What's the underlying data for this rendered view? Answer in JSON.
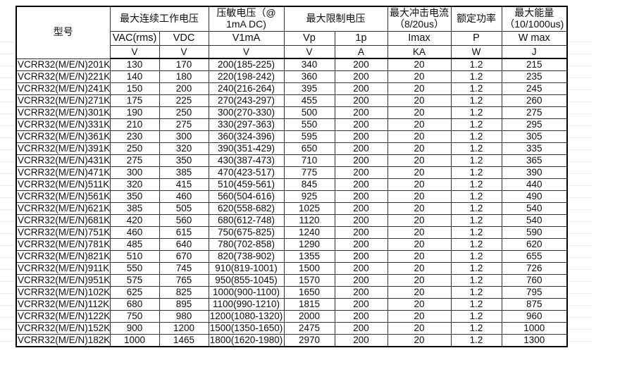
{
  "colors": {
    "background": "#ffffff",
    "border": "#333333",
    "text": "#0d0d0d"
  },
  "header": {
    "model": "型号",
    "group_mcov": "最大连续工作电压",
    "group_varistor_line1": "压敏电压（@",
    "group_varistor_line2": "1mA DC)",
    "group_clamping": "最大限制电压",
    "group_surge_line1": "最大冲击电流",
    "group_surge_line2": "（8/20us）",
    "group_power": "额定功率",
    "group_energy_line1": "最大能量",
    "group_energy_line2": "（10/1000us)",
    "sub": [
      "VAC(rms)",
      "VDC",
      "V1mA",
      "Vp",
      "1p",
      "Imax",
      "P",
      "W max"
    ],
    "units": [
      "V",
      "V",
      "V",
      "V",
      "A",
      "KA",
      "W",
      "J"
    ]
  },
  "rows": [
    [
      "VCRR32(M/E/N)201K",
      "130",
      "170",
      "200(185-225)",
      "340",
      "200",
      "20",
      "1.2",
      "215"
    ],
    [
      "VCRR32(M/E/N)221K",
      "140",
      "180",
      "220(198-242)",
      "360",
      "200",
      "20",
      "1.2",
      "235"
    ],
    [
      "VCRR32(M/E/N)241K",
      "150",
      "200",
      "240(216-264)",
      "395",
      "200",
      "20",
      "1.2",
      "245"
    ],
    [
      "VCRR32(M/E/N)271K",
      "175",
      "225",
      "270(243-297)",
      "455",
      "200",
      "20",
      "1.2",
      "260"
    ],
    [
      "VCRR32(M/E/N)301K",
      "190",
      "250",
      "300(270-330)",
      "500",
      "200",
      "20",
      "1.2",
      "275"
    ],
    [
      "VCRR32(M/E/N)331K",
      "210",
      "275",
      "330(297-363)",
      "550",
      "200",
      "20",
      "1.2",
      "295"
    ],
    [
      "VCRR32(M/E/N)361K",
      "230",
      "300",
      "360(324-396)",
      "595",
      "200",
      "20",
      "1.2",
      "305"
    ],
    [
      "VCRR32(M/E/N)391K",
      "250",
      "320",
      "390(351-429)",
      "650",
      "200",
      "20",
      "1.2",
      "335"
    ],
    [
      "VCRR32(M/E/N)431K",
      "275",
      "350",
      "430(387-473)",
      "710",
      "200",
      "20",
      "1.2",
      "365"
    ],
    [
      "VCRR32(M/E/N)471K",
      "300",
      "385",
      "470(423-517)",
      "775",
      "200",
      "20",
      "1.2",
      "390"
    ],
    [
      "VCRR32(M/E/N)511K",
      "320",
      "415",
      "510(459-561)",
      "845",
      "200",
      "20",
      "1.2",
      "440"
    ],
    [
      "VCRR32(M/E/N)561K",
      "350",
      "460",
      "560(504-616)",
      "925",
      "200",
      "20",
      "1.2",
      "490"
    ],
    [
      "VCRR32(M/E/N)621K",
      "385",
      "505",
      "620(558-682)",
      "1025",
      "200",
      "20",
      "1.2",
      "540"
    ],
    [
      "VCRR32(M/E/N)681K",
      "420",
      "560",
      "680(612-748)",
      "1120",
      "200",
      "20",
      "1.2",
      "540"
    ],
    [
      "VCRR32(M/E/N)751K",
      "460",
      "615",
      "750(675-825)",
      "1240",
      "200",
      "20",
      "1.2",
      "590"
    ],
    [
      "VCRR32(M/E/N)781K",
      "485",
      "640",
      "780(702-858)",
      "1290",
      "200",
      "20",
      "1.2",
      "620"
    ],
    [
      "VCRR32(M/E/N)821K",
      "510",
      "670",
      "820(738-902)",
      "1355",
      "200",
      "20",
      "1.2",
      "655"
    ],
    [
      "VCRR32(M/E/N)911K",
      "550",
      "745",
      "910(819-1001)",
      "1500",
      "200",
      "20",
      "1.2",
      "726"
    ],
    [
      "VCRR32(M/E/N)951K",
      "575",
      "765",
      "950(855-1045)",
      "1570",
      "200",
      "20",
      "1.2",
      "760"
    ],
    [
      "VCRR32(M/E/N)102K",
      "625",
      "825",
      "1000(900-1100)",
      "1650",
      "200",
      "20",
      "1.2",
      "795"
    ],
    [
      "VCRR32(M/E/N)112K",
      "680",
      "895",
      "1100(990-1210)",
      "1815",
      "200",
      "20",
      "1.2",
      "875"
    ],
    [
      "VCRR32(M/E/N)122K",
      "750",
      "980",
      "1200(1080-1320)",
      "2000",
      "200",
      "20",
      "1.2",
      "960"
    ],
    [
      "VCRR32(M/E/N)152K",
      "900",
      "1200",
      "1500(1350-1650)",
      "2475",
      "200",
      "20",
      "1.2",
      "1000"
    ],
    [
      "VCRR32(M/E/N)182K",
      "1000",
      "1465",
      "1800(1620-1980)",
      "2970",
      "200",
      "20",
      "1.2",
      "1300"
    ]
  ]
}
